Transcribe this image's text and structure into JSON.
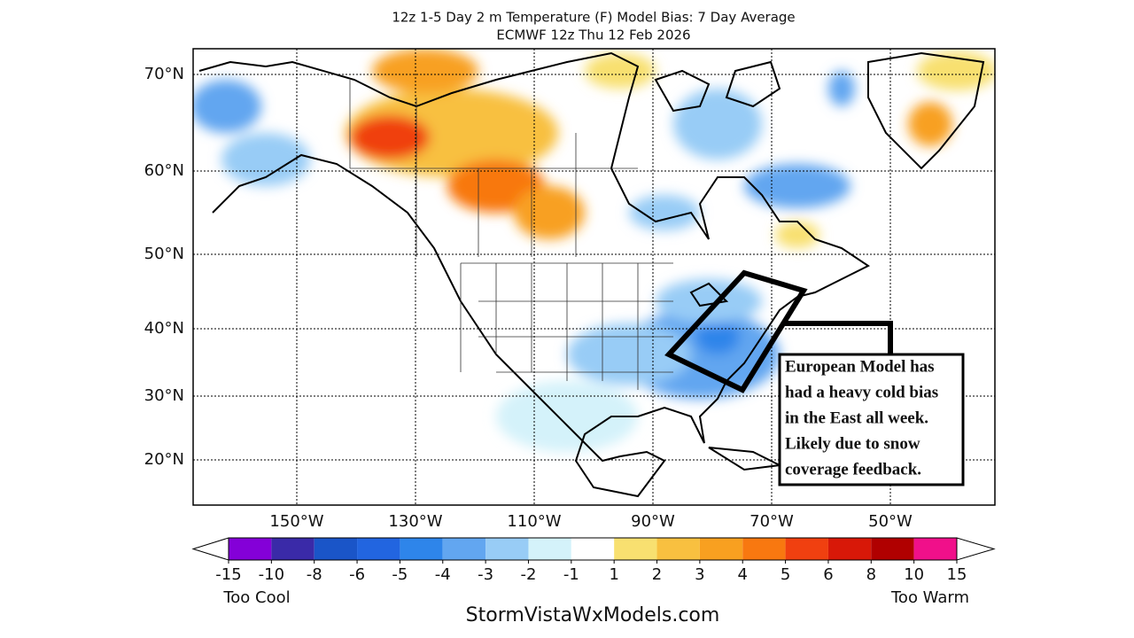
{
  "title": "12z 1-5 Day 2 m Temperature (F) Model Bias: 7 Day Average",
  "subtitle": "ECMWF 12z Thu 12 Feb 2026",
  "latitude_labels": [
    "70°N",
    "60°N",
    "50°N",
    "40°N",
    "30°N",
    "20°N"
  ],
  "longitude_labels": [
    "150°W",
    "130°W",
    "110°W",
    "90°W",
    "70°W",
    "50°W"
  ],
  "colorbar": {
    "ticks": [
      -15,
      -10,
      -8,
      -6,
      -5,
      -4,
      -3,
      -2,
      -1,
      1,
      2,
      3,
      4,
      5,
      6,
      8,
      10,
      15
    ],
    "colors": [
      "#8400d8",
      "#3a2aa8",
      "#1a55c8",
      "#2265e0",
      "#2e85ea",
      "#62a6f0",
      "#98ccf6",
      "#d4f2fa",
      "#ffffff",
      "#f8e070",
      "#f8c040",
      "#f8a020",
      "#f87810",
      "#f04010",
      "#d81808",
      "#b00000",
      "#f0108a"
    ],
    "low_label": "Too Cool",
    "high_label": "Too Warm"
  },
  "annotation": [
    "European Model has",
    "had a heavy cold bias",
    "in the East all week.",
    "Likely due to snow",
    "coverage feedback."
  ],
  "footer": "StormVistaWxModels.com"
}
